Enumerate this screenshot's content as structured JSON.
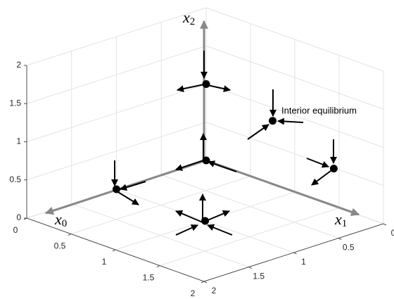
{
  "chart_data": {
    "type": "scatter3d",
    "axis_labels": [
      {
        "base": "x",
        "sub": "0"
      },
      {
        "base": "x",
        "sub": "1"
      },
      {
        "base": "x",
        "sub": "2"
      }
    ],
    "annotation": "Interior equilibrium",
    "x": [
      0,
      0,
      1,
      0,
      0.75,
      1.44
    ],
    "y": [
      0,
      1,
      1,
      0,
      0,
      0
    ],
    "z": [
      0,
      0,
      0,
      1,
      0.83,
      0.49
    ],
    "color": "#000000",
    "xlim": [
      0,
      2
    ],
    "ylim": [
      0,
      2
    ],
    "zlim": [
      0,
      2
    ],
    "xticks": [
      0,
      0.5,
      1,
      1.5,
      2
    ],
    "yticks": [
      0,
      0.5,
      1,
      1.5,
      2
    ],
    "zticks": [
      0,
      0.5,
      1,
      1.5,
      2
    ],
    "grid": true
  }
}
